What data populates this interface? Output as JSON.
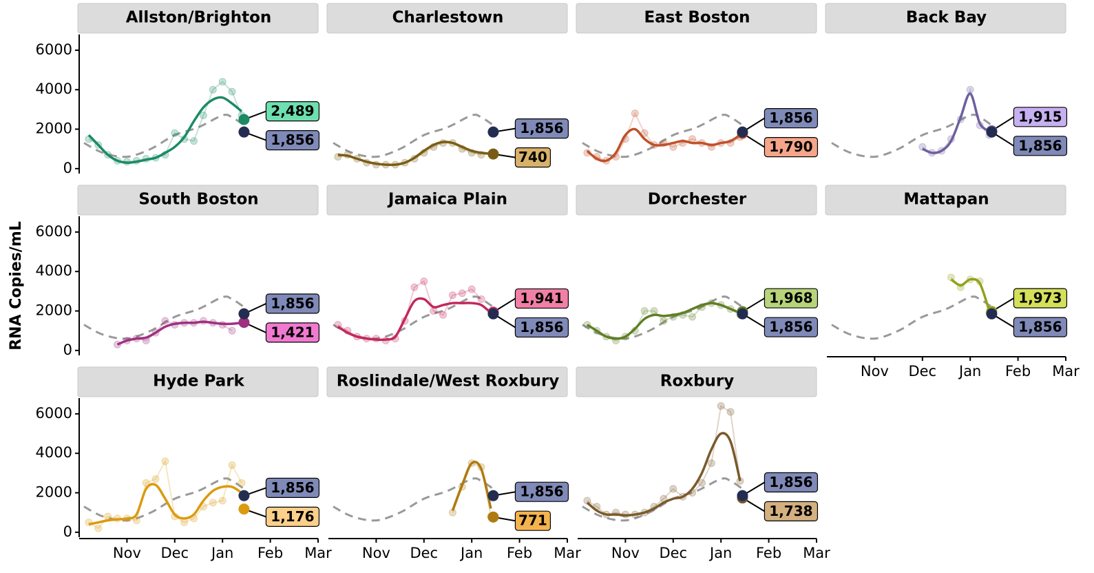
{
  "y_label": "RNA Copies/mL",
  "axes": {
    "xlim": [
      10,
      15
    ],
    "ylim": [
      -250,
      6800
    ],
    "xticks": [
      {
        "value": 11,
        "label": "Nov"
      },
      {
        "value": 12,
        "label": "Dec"
      },
      {
        "value": 13,
        "label": "Jan"
      },
      {
        "value": 14,
        "label": "Feb"
      },
      {
        "value": 15,
        "label": "Mar"
      }
    ],
    "yticks": [
      0,
      2000,
      4000,
      6000
    ]
  },
  "citywide": {
    "color": "#232d52",
    "label_color": "#7f8ab8",
    "line_color": "#999999",
    "x": [
      10.1,
      10.5,
      11,
      11.5,
      12,
      12.5,
      13,
      13.2,
      13.45
    ],
    "values": [
      1300,
      800,
      600,
      1000,
      1700,
      2100,
      2700,
      2600,
      2200
    ]
  },
  "chart_data": [
    {
      "type": "line",
      "title": "Allston/Brighton",
      "color": "#1b8a66",
      "label_color": "#6ee0b0",
      "x": [
        10.2,
        10.4,
        10.6,
        10.8,
        11.0,
        11.2,
        11.4,
        11.6,
        11.8,
        12.0,
        12.2,
        12.4,
        12.6,
        12.8,
        13.0,
        13.2,
        13.4
      ],
      "series": [
        {
          "style": "points",
          "values": [
            1500,
            1200,
            700,
            400,
            350,
            400,
            500,
            550,
            700,
            1800,
            1500,
            1400,
            2700,
            4000,
            4400,
            3900,
            2700
          ]
        },
        {
          "style": "smooth",
          "values": [
            1700,
            1200,
            700,
            400,
            300,
            350,
            450,
            550,
            800,
            1100,
            1600,
            2400,
            3100,
            3500,
            3600,
            3300,
            2900
          ]
        }
      ],
      "end_points": {
        "values": [
          2489,
          1856
        ],
        "value_labels": [
          "2,489",
          "1,856"
        ]
      }
    },
    {
      "type": "line",
      "title": "Charlestown",
      "color": "#7a5c14",
      "label_color": "#d9b26a",
      "x": [
        10.2,
        10.4,
        10.6,
        10.8,
        11.0,
        11.2,
        11.4,
        11.6,
        11.8,
        12.0,
        12.2,
        12.4,
        12.6,
        12.8,
        13.0,
        13.2,
        13.4
      ],
      "series": [
        {
          "style": "points",
          "values": [
            600,
            700,
            500,
            300,
            200,
            200,
            200,
            300,
            500,
            800,
            1100,
            1300,
            1300,
            1000,
            800,
            700,
            null
          ]
        },
        {
          "style": "smooth",
          "values": [
            700,
            650,
            500,
            350,
            250,
            200,
            200,
            300,
            550,
            900,
            1200,
            1350,
            1300,
            1100,
            900,
            800,
            750
          ]
        }
      ],
      "end_points": {
        "values": [
          740,
          1856
        ],
        "value_labels": [
          "740",
          "1,856"
        ]
      }
    },
    {
      "type": "line",
      "title": "East Boston",
      "color": "#c0512a",
      "label_color": "#f4a58a",
      "x": [
        10.2,
        10.4,
        10.6,
        10.8,
        11.0,
        11.2,
        11.4,
        11.6,
        11.8,
        12.0,
        12.2,
        12.4,
        12.6,
        12.8,
        13.0,
        13.2,
        13.4
      ],
      "series": [
        {
          "style": "points",
          "values": [
            800,
            600,
            400,
            600,
            1500,
            2800,
            1800,
            1200,
            1300,
            1100,
            1300,
            1500,
            1300,
            1100,
            1300,
            1300,
            1600
          ]
        },
        {
          "style": "smooth",
          "values": [
            900,
            500,
            400,
            800,
            1700,
            2000,
            1500,
            1200,
            1200,
            1300,
            1400,
            1300,
            1300,
            1200,
            1300,
            1400,
            1700
          ]
        }
      ],
      "end_points": {
        "values": [
          1790,
          1856
        ],
        "value_labels": [
          "1,790",
          "1,856"
        ]
      }
    },
    {
      "type": "line",
      "title": "Back Bay",
      "color": "#6f5f9e",
      "label_color": "#c7b0f0",
      "x": [
        10.2,
        10.4,
        10.6,
        10.8,
        11.0,
        11.2,
        11.4,
        11.6,
        11.8,
        12.0,
        12.2,
        12.4,
        12.6,
        12.8,
        13.0,
        13.2,
        13.4
      ],
      "series": [
        {
          "style": "points",
          "values": [
            null,
            null,
            null,
            null,
            null,
            null,
            null,
            null,
            null,
            1100,
            800,
            900,
            1500,
            2500,
            4000,
            2200,
            1700
          ]
        },
        {
          "style": "smooth",
          "values": [
            null,
            null,
            null,
            null,
            null,
            null,
            null,
            null,
            null,
            1000,
            800,
            900,
            1400,
            2600,
            3800,
            2300,
            1900
          ]
        }
      ],
      "end_points": {
        "values": [
          1915,
          1856
        ],
        "value_labels": [
          "1,915",
          "1,856"
        ]
      }
    },
    {
      "type": "line",
      "title": "South Boston",
      "color": "#a0307f",
      "label_color": "#f07ad0",
      "x": [
        10.2,
        10.4,
        10.6,
        10.8,
        11.0,
        11.2,
        11.4,
        11.6,
        11.8,
        12.0,
        12.2,
        12.4,
        12.6,
        12.8,
        13.0,
        13.2,
        13.4
      ],
      "series": [
        {
          "style": "points",
          "values": [
            null,
            null,
            null,
            300,
            500,
            600,
            500,
            900,
            1500,
            1300,
            1400,
            1400,
            1500,
            1400,
            1300,
            1000,
            null
          ]
        },
        {
          "style": "smooth",
          "values": [
            null,
            null,
            null,
            300,
            500,
            600,
            650,
            900,
            1200,
            1350,
            1400,
            1400,
            1450,
            1400,
            1350,
            1350,
            1400
          ]
        }
      ],
      "end_points": {
        "values": [
          1421,
          1856
        ],
        "value_labels": [
          "1,421",
          "1,856"
        ]
      }
    },
    {
      "type": "line",
      "title": "Jamaica Plain",
      "color": "#c2285e",
      "label_color": "#f27fa6",
      "x": [
        10.2,
        10.4,
        10.6,
        10.8,
        11.0,
        11.2,
        11.4,
        11.6,
        11.8,
        12.0,
        12.2,
        12.4,
        12.6,
        12.8,
        13.0,
        13.2,
        13.4
      ],
      "series": [
        {
          "style": "points",
          "values": [
            1300,
            1000,
            700,
            600,
            600,
            500,
            600,
            1500,
            3200,
            3500,
            2000,
            1800,
            2800,
            2900,
            3100,
            2600,
            null
          ]
        },
        {
          "style": "smooth",
          "values": [
            1200,
            900,
            700,
            600,
            550,
            550,
            700,
            1600,
            2500,
            2600,
            2200,
            2300,
            2400,
            2400,
            2400,
            2300,
            1900
          ]
        }
      ],
      "end_points": {
        "values": [
          1941,
          1856
        ],
        "value_labels": [
          "1,941",
          "1,856"
        ]
      }
    },
    {
      "type": "line",
      "title": "Dorchester",
      "color": "#5f7f24",
      "label_color": "#b7d47a",
      "x": [
        10.2,
        10.4,
        10.6,
        10.8,
        11.0,
        11.2,
        11.4,
        11.6,
        11.8,
        12.0,
        12.2,
        12.4,
        12.6,
        12.8,
        13.0,
        13.2,
        13.4
      ],
      "series": [
        {
          "style": "points",
          "values": [
            1300,
            1000,
            700,
            500,
            700,
            1000,
            2000,
            2000,
            1500,
            1700,
            1800,
            1700,
            2200,
            2400,
            2300,
            2100,
            1800
          ]
        },
        {
          "style": "smooth",
          "values": [
            1300,
            1000,
            700,
            600,
            700,
            1100,
            1600,
            1800,
            1750,
            1800,
            1900,
            2100,
            2300,
            2400,
            2300,
            2100,
            1900
          ]
        }
      ],
      "end_points": {
        "values": [
          1968,
          1856
        ],
        "value_labels": [
          "1,968",
          "1,856"
        ]
      }
    },
    {
      "type": "line",
      "title": "Mattapan",
      "color": "#93a11c",
      "label_color": "#d4e05a",
      "x": [
        10.2,
        10.4,
        10.6,
        10.8,
        11.0,
        11.2,
        11.4,
        11.6,
        11.8,
        12.0,
        12.2,
        12.4,
        12.6,
        12.8,
        13.0,
        13.2,
        13.4
      ],
      "series": [
        {
          "style": "points",
          "values": [
            null,
            null,
            null,
            null,
            null,
            null,
            null,
            null,
            null,
            null,
            null,
            null,
            3700,
            3200,
            3600,
            3500,
            1900
          ]
        },
        {
          "style": "smooth",
          "values": [
            null,
            null,
            null,
            null,
            null,
            null,
            null,
            null,
            null,
            null,
            null,
            null,
            3600,
            3300,
            3600,
            3400,
            2000
          ]
        }
      ],
      "end_points": {
        "values": [
          1973,
          1856
        ],
        "value_labels": [
          "1,973",
          "1,856"
        ]
      }
    },
    {
      "type": "line",
      "title": "Hyde Park",
      "color": "#dc9a0f",
      "label_color": "#fcd08a",
      "x": [
        10.2,
        10.4,
        10.6,
        10.8,
        11.0,
        11.2,
        11.4,
        11.6,
        11.8,
        12.0,
        12.2,
        12.4,
        12.6,
        12.8,
        13.0,
        13.2,
        13.4
      ],
      "series": [
        {
          "style": "points",
          "values": [
            500,
            200,
            800,
            700,
            700,
            600,
            2500,
            2700,
            3600,
            800,
            500,
            700,
            1300,
            1500,
            1600,
            3400,
            2500
          ]
        },
        {
          "style": "smooth",
          "values": [
            400,
            500,
            600,
            650,
            700,
            900,
            2200,
            2400,
            1700,
            900,
            700,
            900,
            1600,
            2100,
            2300,
            2300,
            2000
          ]
        }
      ],
      "end_points": {
        "values": [
          1176,
          1856
        ],
        "value_labels": [
          "1,176",
          "1,856"
        ]
      }
    },
    {
      "type": "line",
      "title": "Roslindale/West Roxbury",
      "color": "#b07a10",
      "label_color": "#f5b350",
      "x": [
        10.2,
        10.4,
        10.6,
        10.8,
        11.0,
        11.2,
        11.4,
        11.6,
        11.8,
        12.0,
        12.2,
        12.4,
        12.6,
        12.8,
        13.0,
        13.2,
        13.4
      ],
      "series": [
        {
          "style": "points",
          "values": [
            null,
            null,
            null,
            null,
            null,
            null,
            null,
            null,
            null,
            null,
            null,
            null,
            1000,
            2300,
            3500,
            3300,
            800
          ]
        },
        {
          "style": "smooth",
          "values": [
            null,
            null,
            null,
            null,
            null,
            null,
            null,
            null,
            null,
            null,
            null,
            null,
            1100,
            2400,
            3500,
            3200,
            1200
          ]
        }
      ],
      "end_points": {
        "values": [
          771,
          1856
        ],
        "value_labels": [
          "771",
          "1,856"
        ]
      }
    },
    {
      "type": "line",
      "title": "Roxbury",
      "color": "#7a5a2a",
      "label_color": "#d4b080",
      "x": [
        10.2,
        10.4,
        10.6,
        10.8,
        11.0,
        11.2,
        11.4,
        11.6,
        11.8,
        12.0,
        12.2,
        12.4,
        12.6,
        12.8,
        13.0,
        13.2,
        13.4
      ],
      "series": [
        {
          "style": "points",
          "values": [
            1600,
            1300,
            900,
            1000,
            900,
            900,
            1000,
            1300,
            1700,
            2200,
            1800,
            2000,
            2500,
            3500,
            6400,
            6100,
            2600
          ]
        },
        {
          "style": "smooth",
          "values": [
            1500,
            1100,
            900,
            900,
            850,
            900,
            1000,
            1200,
            1500,
            1700,
            1800,
            2200,
            3000,
            4200,
            5000,
            4600,
            2600
          ]
        }
      ],
      "end_points": {
        "values": [
          1738,
          1856
        ],
        "value_labels": [
          "1,738",
          "1,856"
        ]
      }
    }
  ]
}
